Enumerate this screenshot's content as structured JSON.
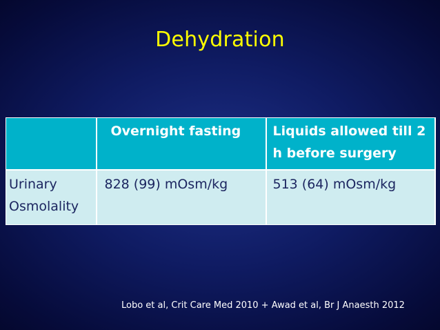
{
  "slide": {
    "title": "Dehydration",
    "citation": "Lobo et al, Crit Care Med 2010 + Awad et al, Br J Anaesth 2012"
  },
  "table": {
    "headers": [
      "",
      "Overnight fasting",
      "Liquids allowed till 2 h before surgery"
    ],
    "rows": [
      {
        "parameter": "Urinary Osmolality",
        "overnight_fasting": "828 (99) mOsm/kg",
        "liquids_allowed": "513 (64) mOsm/kg"
      }
    ]
  },
  "colors": {
    "title": "#ffff00",
    "header_background": "#00b2ca",
    "body_row_background": "#cfecf0",
    "background": "#0f1b62"
  }
}
